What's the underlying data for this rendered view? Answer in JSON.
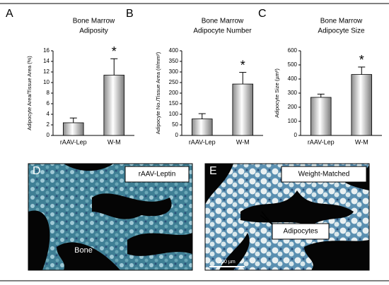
{
  "chart_data": [
    {
      "type": "bar",
      "panel_label": "A",
      "title": [
        "Bone Marrow",
        "Adiposity"
      ],
      "y_label": "Adipocyte Area/Tissue Area (%)",
      "categories": [
        "rAAV-Lep",
        "W-M"
      ],
      "series": [
        {
          "color": "#d9d9d9",
          "values": [
            2.4,
            11.4
          ],
          "errors": [
            0.9,
            3.1
          ]
        }
      ],
      "ylim": [
        0,
        16
      ],
      "yticks": [
        0,
        2,
        4,
        6,
        8,
        10,
        12,
        14,
        16
      ],
      "annotation": "*",
      "significant": [
        false,
        true
      ]
    },
    {
      "type": "bar",
      "panel_label": "B",
      "title": [
        "Bone Marrow",
        "Adipocyte Number"
      ],
      "y_label": "Adipocyte No./Tissue Area (#/mm²)",
      "categories": [
        "rAAV-Lep",
        "W-M"
      ],
      "series": [
        {
          "color": "#d9d9d9",
          "values": [
            78,
            243
          ],
          "errors": [
            25,
            55
          ]
        }
      ],
      "ylim": [
        0,
        400
      ],
      "yticks": [
        0,
        50,
        100,
        150,
        200,
        250,
        300,
        350,
        400
      ],
      "annotation": "*",
      "significant": [
        false,
        true
      ]
    },
    {
      "type": "bar",
      "panel_label": "C",
      "title": [
        "Bone Marrow",
        "Adipocyte Size"
      ],
      "y_label": "Adipocyte Size (µm²)",
      "categories": [
        "rAAV-Lep",
        "W-M"
      ],
      "series": [
        {
          "color": "#d9d9d9",
          "values": [
            270,
            432
          ],
          "errors": [
            23,
            53
          ]
        }
      ],
      "ylim": [
        0,
        600
      ],
      "yticks": [
        0,
        100,
        200,
        300,
        400,
        500,
        600
      ],
      "annotation": "*",
      "significant": [
        false,
        true
      ]
    }
  ],
  "panels": [
    {
      "label": "D",
      "caption": "rAAV-Leptin",
      "annotation": "Bone"
    },
    {
      "label": "E",
      "caption": "Weight-Matched",
      "annotation": "Adipocytes",
      "scale_bar": "200 µm"
    }
  ]
}
